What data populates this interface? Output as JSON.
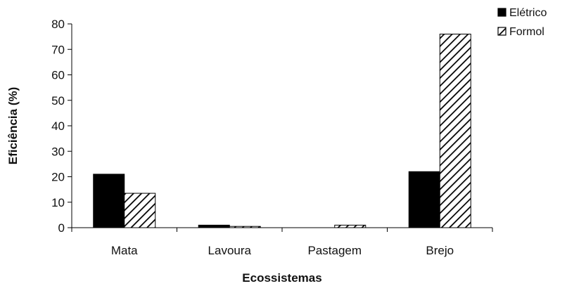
{
  "chart_data": {
    "type": "bar",
    "title": "",
    "xlabel": "Ecossistemas",
    "ylabel": "Eficiência (%)",
    "ylim": [
      0,
      80
    ],
    "yticks": [
      0,
      10,
      20,
      30,
      40,
      50,
      60,
      70,
      80
    ],
    "categories": [
      "Mata",
      "Lavoura",
      "Pastagem",
      "Brejo"
    ],
    "series": [
      {
        "name": "Elétrico",
        "values": [
          21,
          1,
          0,
          22
        ],
        "fill": "solid",
        "color": "#000000"
      },
      {
        "name": "Formol",
        "values": [
          13.5,
          0.5,
          1,
          76
        ],
        "fill": "hatched",
        "color": "#000000"
      }
    ],
    "legend_position": "top-right",
    "grid": false
  }
}
